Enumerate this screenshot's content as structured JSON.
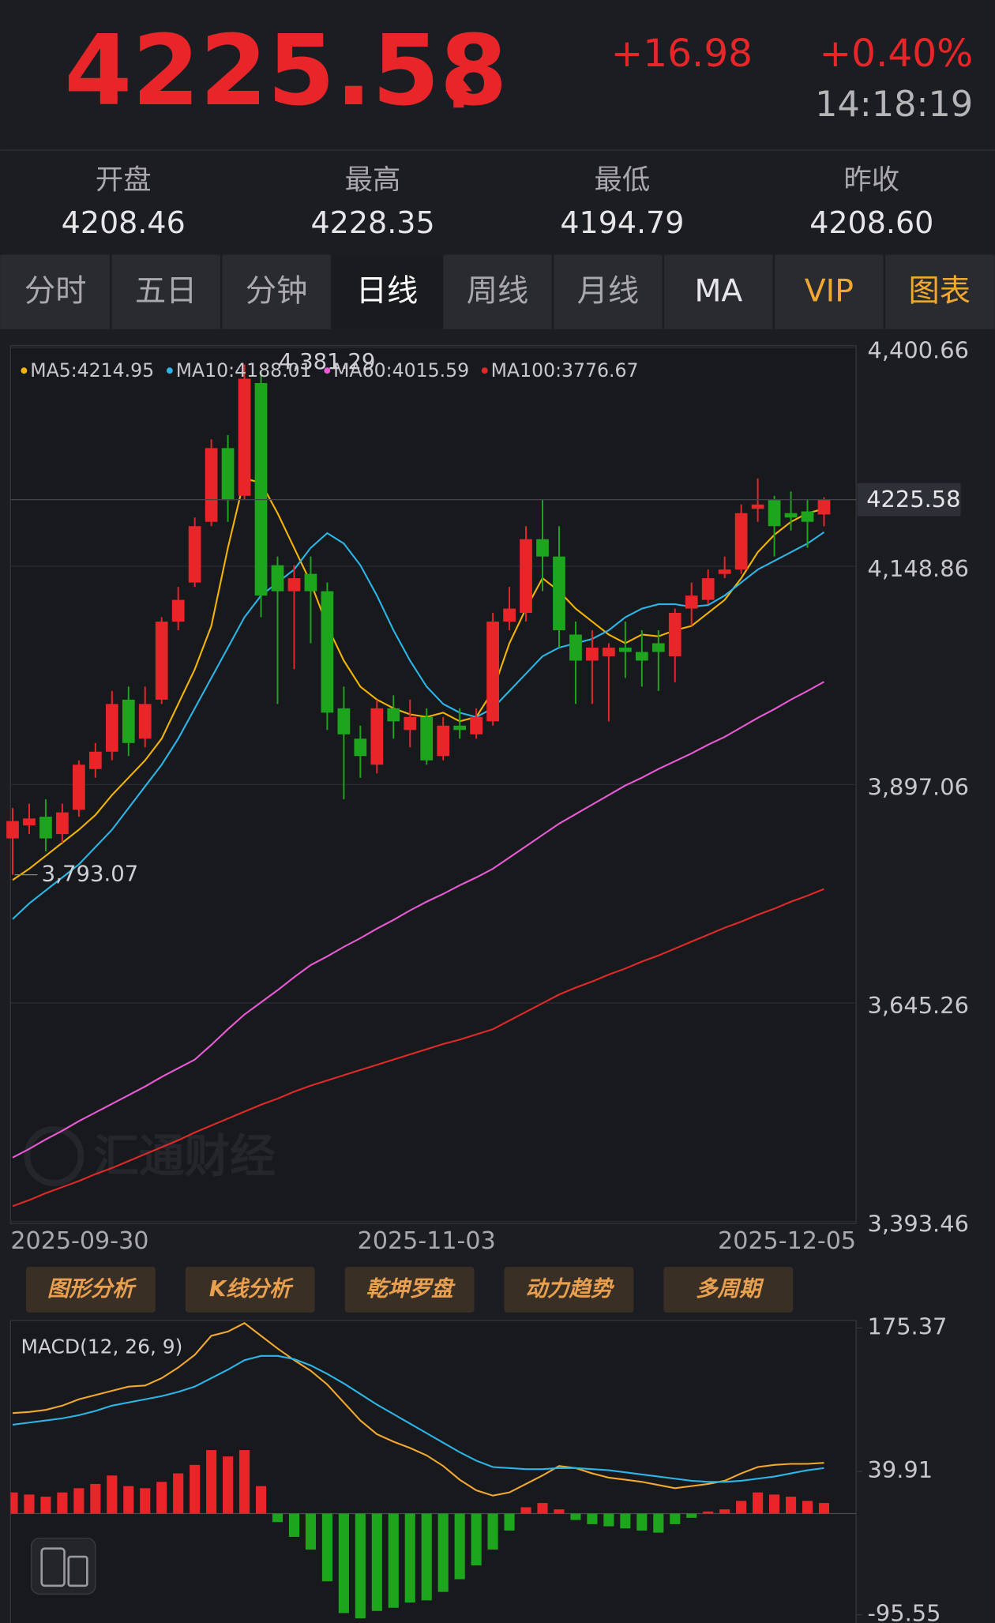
{
  "header": {
    "price": "4225.58",
    "change": "+16.98",
    "change_pct": "+0.40%",
    "time": "14:18:19"
  },
  "stats": [
    {
      "label": "开盘",
      "value": "4208.46"
    },
    {
      "label": "最高",
      "value": "4228.35"
    },
    {
      "label": "最低",
      "value": "4194.79"
    },
    {
      "label": "昨收",
      "value": "4208.60"
    }
  ],
  "tabs": [
    "分时",
    "五日",
    "分钟",
    "日线",
    "周线",
    "月线",
    "MA",
    "VIP",
    "图表"
  ],
  "active_tab_index": 3,
  "tools": [
    "图形分析",
    "K线分析",
    "乾坤罗盘",
    "动力趋势",
    "多周期"
  ],
  "watermark": "汇通财经",
  "chart_data": [
    {
      "type": "candlestick",
      "categories": [
        "2025-09-30",
        null,
        null,
        null,
        null,
        null,
        null,
        null,
        null,
        null,
        null,
        null,
        null,
        null,
        null,
        null,
        null,
        null,
        null,
        null,
        null,
        null,
        null,
        null,
        null,
        "2025-11-03",
        null,
        null,
        null,
        null,
        null,
        null,
        null,
        null,
        null,
        null,
        null,
        null,
        null,
        null,
        null,
        null,
        null,
        null,
        null,
        null,
        null,
        null,
        null,
        "2025-12-05"
      ],
      "open": [
        3835,
        3850,
        3860,
        3840,
        3868,
        3915,
        3935,
        3995,
        3950,
        3995,
        4085,
        4130,
        4200,
        4285,
        4230,
        4360,
        4150,
        4120,
        4140,
        4120,
        3985,
        3950,
        3920,
        3985,
        3960,
        3975,
        3930,
        3965,
        3955,
        3970,
        4085,
        4095,
        4180,
        4160,
        4070,
        4040,
        4045,
        4055,
        4050,
        4060,
        4045,
        4100,
        4110,
        4140,
        4145,
        4215,
        4225,
        4210,
        4212,
        4208.46
      ],
      "high": [
        3870,
        3875,
        3880,
        3875,
        3925,
        3945,
        4005,
        4010,
        4010,
        4090,
        4125,
        4205,
        4295,
        4300,
        4381.29,
        4375,
        4160,
        4150,
        4160,
        4130,
        4010,
        3965,
        3995,
        4000,
        3995,
        3985,
        3975,
        3985,
        3985,
        4095,
        4125,
        4195,
        4225,
        4195,
        4085,
        4075,
        4060,
        4085,
        4075,
        4075,
        4100,
        4130,
        4145,
        4160,
        4220,
        4250,
        4230,
        4235,
        4225,
        4228.35
      ],
      "low": [
        3793.07,
        3840,
        3820,
        3830,
        3860,
        3905,
        3925,
        3930,
        3940,
        3990,
        4075,
        4125,
        4195,
        4200,
        4225,
        4090,
        3990,
        4030,
        4060,
        3960,
        3880,
        3905,
        3910,
        3950,
        3940,
        3920,
        3925,
        3950,
        3950,
        3965,
        4075,
        4085,
        4120,
        4055,
        3990,
        3990,
        3970,
        4020,
        4010,
        4005,
        4015,
        4080,
        4105,
        4135,
        4140,
        4200,
        4160,
        4190,
        4170,
        4194.79
      ],
      "close": [
        3855,
        3858,
        3835,
        3865,
        3920,
        3935,
        3990,
        3945,
        3990,
        4085,
        4110,
        4195,
        4285,
        4225,
        4365,
        4115,
        4120,
        4135,
        4120,
        3980,
        3955,
        3930,
        3985,
        3970,
        3975,
        3925,
        3965,
        3960,
        3975,
        4085,
        4100,
        4180,
        4160,
        4075,
        4040,
        4055,
        4055,
        4050,
        4040,
        4050,
        4095,
        4115,
        4135,
        4145,
        4210,
        4220,
        4195,
        4205,
        4200,
        4225.58
      ],
      "up_color": "#e8262a",
      "down_color": "#1ea51e",
      "series": [
        {
          "name": "MA5:4214.95",
          "color": "#f5b400",
          "values": [
            3787,
            3800,
            3815,
            3830,
            3845,
            3862,
            3885,
            3905,
            3925,
            3950,
            3990,
            4030,
            4080,
            4170,
            4250,
            4245,
            4210,
            4170,
            4130,
            4080,
            4040,
            4010,
            3995,
            3985,
            3978,
            3975,
            3980,
            3970,
            3975,
            4005,
            4060,
            4100,
            4135,
            4120,
            4100,
            4085,
            4070,
            4060,
            4070,
            4068,
            4075,
            4080,
            4095,
            4110,
            4135,
            4165,
            4185,
            4200,
            4210,
            4214.95
          ]
        },
        {
          "name": "MA10:4188.01",
          "color": "#2bb5e8",
          "values": [
            3742,
            3760,
            3775,
            3790,
            3805,
            3825,
            3845,
            3870,
            3895,
            3920,
            3950,
            3985,
            4020,
            4055,
            4090,
            4115,
            4130,
            4145,
            4170,
            4187,
            4175,
            4150,
            4115,
            4075,
            4040,
            4010,
            3990,
            3980,
            3975,
            3985,
            4005,
            4025,
            4045,
            4055,
            4060,
            4065,
            4075,
            4090,
            4100,
            4105,
            4105,
            4102,
            4104,
            4115,
            4130,
            4145,
            4155,
            4165,
            4175,
            4188.01
          ]
        },
        {
          "name": "MA60:4015.59",
          "color": "#ea5ad6",
          "values": [
            3467,
            3477,
            3488,
            3498,
            3509,
            3519,
            3529,
            3539,
            3549,
            3560,
            3570,
            3580,
            3597,
            3615,
            3632,
            3646,
            3660,
            3675,
            3689,
            3699,
            3710,
            3720,
            3731,
            3741,
            3752,
            3762,
            3771,
            3781,
            3790,
            3800,
            3813,
            3826,
            3839,
            3852,
            3863,
            3874,
            3885,
            3896,
            3905,
            3915,
            3924,
            3933,
            3943,
            3952,
            3963,
            3974,
            3984,
            3995,
            4005,
            4015.59
          ]
        },
        {
          "name": "MA100:3776.67",
          "color": "#e02a2a",
          "values": [
            3411,
            3418,
            3426,
            3433,
            3440,
            3448,
            3455,
            3463,
            3471,
            3479,
            3487,
            3496,
            3504,
            3512,
            3520,
            3528,
            3535,
            3543,
            3550,
            3556,
            3562,
            3568,
            3574,
            3580,
            3586,
            3592,
            3598,
            3603,
            3609,
            3615,
            3625,
            3635,
            3645,
            3655,
            3663,
            3670,
            3678,
            3685,
            3693,
            3700,
            3708,
            3716,
            3724,
            3732,
            3739,
            3747,
            3754,
            3762,
            3769,
            3776.67
          ]
        }
      ],
      "high_label": "4,381.29",
      "low_label": "3,793.07",
      "ylim": [
        3393.46,
        4400.66
      ],
      "yticks": [
        {
          "value": 4400.66,
          "label": "4,400.66"
        },
        {
          "value": 4148.86,
          "label": "4,148.86"
        },
        {
          "value": 3897.06,
          "label": "3,897.06"
        },
        {
          "value": 3645.26,
          "label": "3,645.26"
        },
        {
          "value": 3393.46,
          "label": "3,393.46"
        }
      ]
    },
    {
      "type": "macd",
      "title": "MACD(12, 26, 9)",
      "histogram": {
        "up_color": "#e8262a",
        "down_color": "#1ea51e",
        "values": [
          20,
          18,
          16,
          20,
          24,
          28,
          36,
          26,
          24,
          30,
          38,
          46,
          60,
          54,
          60,
          26,
          -8,
          -22,
          -34,
          -64,
          -94,
          -99,
          -92,
          -89,
          -84,
          -82,
          -74,
          -62,
          -49,
          -34,
          -16,
          6,
          10,
          4,
          -6,
          -10,
          -12,
          -14,
          -16,
          -18,
          -10,
          -4,
          2,
          4,
          12,
          20,
          18,
          16,
          12,
          10
        ]
      },
      "series": [
        {
          "color": "#f0a830",
          "values": [
            95,
            96,
            98,
            102,
            108,
            112,
            116,
            120,
            121,
            128,
            138,
            150,
            168,
            172,
            180,
            168,
            156,
            145,
            135,
            122,
            105,
            88,
            75,
            68,
            62,
            55,
            45,
            32,
            22,
            17,
            20,
            28,
            36,
            45,
            43,
            38,
            34,
            32,
            30,
            27,
            24,
            26,
            28,
            31,
            38,
            44,
            46,
            47,
            47,
            48
          ]
        },
        {
          "color": "#2bb5e8",
          "values": [
            84,
            86,
            88,
            90,
            93,
            97,
            102,
            105,
            108,
            111,
            115,
            120,
            128,
            136,
            145,
            149,
            149,
            146,
            140,
            132,
            123,
            113,
            103,
            94,
            85,
            76,
            67,
            58,
            50,
            44,
            43,
            42,
            42,
            43,
            43,
            42,
            41,
            39,
            37,
            35,
            33,
            31,
            30,
            30,
            31,
            33,
            35,
            38,
            41,
            43
          ]
        }
      ],
      "ylim": [
        -95.55,
        175.37
      ],
      "yticks": [
        175.37,
        39.91,
        -95.55
      ]
    }
  ]
}
